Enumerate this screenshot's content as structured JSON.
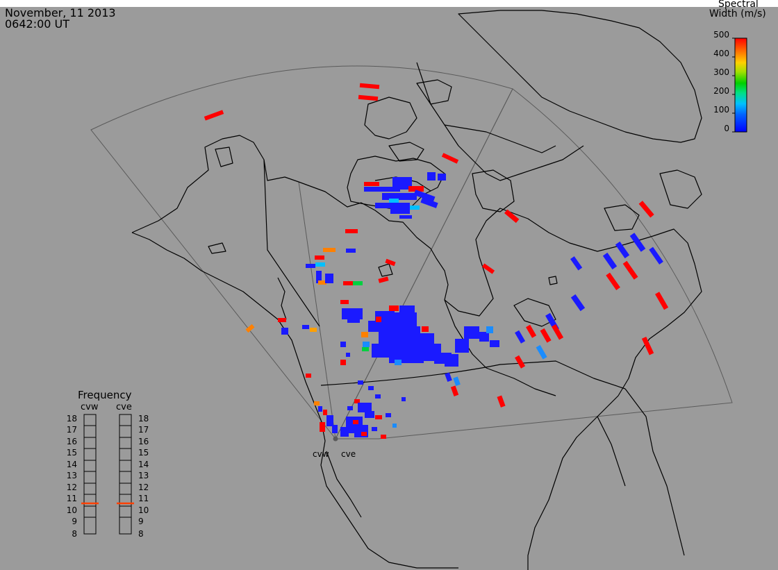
{
  "header": {
    "date": "November, 11 2013",
    "time": "0642:00 UT"
  },
  "colorbar": {
    "title_line1": "Spectral",
    "title_line2": "Width (m/s)",
    "ticks": [
      "500",
      "400",
      "300",
      "200",
      "100",
      "0"
    ],
    "min_value": 0,
    "max_value": 500
  },
  "frequency_panel": {
    "title": "Frequency",
    "radars": [
      {
        "code": "cvw",
        "frequency_mhz": 10.8
      },
      {
        "code": "cve",
        "frequency_mhz": 10.8
      }
    ],
    "scale": [
      "18",
      "17",
      "16",
      "15",
      "14",
      "13",
      "12",
      "11",
      "10",
      "9",
      "8"
    ]
  },
  "sites": [
    "cvw",
    "cve"
  ],
  "colors": {
    "background": "#9b9b9b",
    "coastline": "#000000",
    "fov_outline": "#5a5a5a",
    "high_width": "#ff0000",
    "mid_high": "#ff8000",
    "mid": "#ffd000",
    "mid_low": "#00d040",
    "low_mid": "#00c0ff",
    "low_width": "#1a1aff"
  }
}
